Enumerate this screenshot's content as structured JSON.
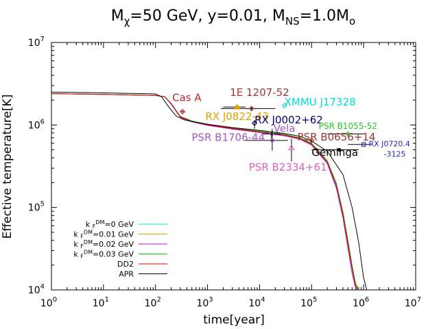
{
  "chart_data": {
    "type": "line",
    "title": "Mχ=50 GeV, y=0.01, MNS=1.0Mo",
    "title_parts": {
      "m1": "M",
      "sub1": "χ",
      "p1": "=50 GeV, y=0.01, M",
      "sub2": "NS",
      "p2": "=1.0M",
      "sub3": "o"
    },
    "xlabel": "time[year]",
    "ylabel": "Effective temperature[K]",
    "x_scale": "log",
    "y_scale": "log",
    "xlim": [
      1,
      10000000
    ],
    "ylim": [
      10000,
      10000000
    ],
    "x_ticks": [
      {
        "value": 1,
        "label_base": "10",
        "label_exp": "0"
      },
      {
        "value": 10,
        "label_base": "10",
        "label_exp": "1"
      },
      {
        "value": 100,
        "label_base": "10",
        "label_exp": "2"
      },
      {
        "value": 1000,
        "label_base": "10",
        "label_exp": "3"
      },
      {
        "value": 10000,
        "label_base": "10",
        "label_exp": "4"
      },
      {
        "value": 100000,
        "label_base": "10",
        "label_exp": "5"
      },
      {
        "value": 1000000,
        "label_base": "10",
        "label_exp": "6"
      },
      {
        "value": 10000000,
        "label_base": "10",
        "label_exp": "7"
      }
    ],
    "y_ticks": [
      {
        "value": 10000,
        "label_base": "10",
        "label_exp": "4"
      },
      {
        "value": 100000,
        "label_base": "10",
        "label_exp": "5"
      },
      {
        "value": 1000000,
        "label_base": "10",
        "label_exp": "6"
      },
      {
        "value": 10000000,
        "label_base": "10",
        "label_exp": "7"
      }
    ],
    "grid": false,
    "legend_position": "bottom-left",
    "series": [
      {
        "name": "k_F^DM=0 GeV",
        "label_parts": [
          "k",
          "F",
          "DM",
          "=0 GeV"
        ],
        "color": "#00e0e0",
        "x": [
          1,
          10,
          100,
          150,
          200,
          300,
          500,
          1000,
          3000,
          10000,
          30000,
          60000,
          100000,
          200000,
          300000,
          400000,
          500000,
          600000,
          700000,
          800000
        ],
        "y": [
          2400000,
          2350000,
          2280000,
          2200000,
          1800000,
          1250000,
          1100000,
          1000000,
          900000,
          820000,
          750000,
          680000,
          580000,
          350000,
          180000,
          80000,
          35000,
          18000,
          11000,
          10000
        ]
      },
      {
        "name": "k_F^DM=0.01 GeV",
        "label_parts": [
          "k",
          "F",
          "DM",
          "=0.01 GeV"
        ],
        "color": "#e0a000",
        "x": [
          1,
          10,
          100,
          150,
          200,
          300,
          500,
          1000,
          3000,
          10000,
          30000,
          60000,
          100000,
          200000,
          300000,
          400000,
          500000,
          600000,
          700000,
          820000
        ],
        "y": [
          2400000,
          2350000,
          2280000,
          2200000,
          1820000,
          1260000,
          1110000,
          1010000,
          910000,
          830000,
          760000,
          690000,
          590000,
          360000,
          190000,
          85000,
          38000,
          19000,
          11500,
          10000
        ]
      },
      {
        "name": "k_F^DM=0.02 GeV",
        "label_parts": [
          "k",
          "F",
          "DM",
          "=0.02 GeV"
        ],
        "color": "#e000e0",
        "x": [
          1,
          10,
          100,
          150,
          200,
          300,
          500,
          1000,
          3000,
          10000,
          30000,
          60000,
          100000,
          200000,
          300000,
          400000,
          500000,
          600000,
          700000,
          780000
        ],
        "y": [
          2400000,
          2350000,
          2280000,
          2200000,
          1790000,
          1240000,
          1090000,
          990000,
          890000,
          810000,
          740000,
          670000,
          570000,
          340000,
          170000,
          75000,
          32000,
          16000,
          10500,
          10000
        ]
      },
      {
        "name": "k_F^DM=0.03 GeV",
        "label_parts": [
          "k",
          "F",
          "DM",
          "=0.03 GeV"
        ],
        "color": "#00cc00",
        "x": [
          1,
          10,
          100,
          150,
          200,
          300,
          500,
          1000,
          3000,
          10000,
          30000,
          60000,
          100000,
          200000,
          300000,
          400000,
          500000,
          600000,
          700000,
          830000
        ],
        "y": [
          2400000,
          2350000,
          2280000,
          2200000,
          1830000,
          1270000,
          1120000,
          1020000,
          920000,
          840000,
          770000,
          700000,
          600000,
          370000,
          195000,
          88000,
          40000,
          20000,
          12000,
          10000
        ]
      },
      {
        "name": "DD2",
        "label_parts": [
          "DD2"
        ],
        "color": "#d00000",
        "x": [
          1,
          10,
          100,
          150,
          200,
          300,
          500,
          1000,
          3000,
          10000,
          30000,
          60000,
          100000,
          200000,
          300000,
          400000,
          500000,
          600000,
          700000,
          800000
        ],
        "y": [
          2400000,
          2350000,
          2280000,
          2200000,
          1810000,
          1255000,
          1105000,
          1005000,
          905000,
          825000,
          755000,
          685000,
          585000,
          355000,
          185000,
          82000,
          36000,
          18500,
          11200,
          10000
        ]
      },
      {
        "name": "APR",
        "label_parts": [
          "APR"
        ],
        "color": "#000000",
        "x": [
          1,
          10,
          100,
          130,
          180,
          250,
          350,
          500,
          1000,
          3000,
          10000,
          30000,
          60000,
          100000,
          200000,
          400000,
          600000,
          800000,
          1000000,
          1150000
        ],
        "y": [
          2500000,
          2450000,
          2380000,
          2200000,
          1650000,
          1280000,
          1160000,
          1100000,
          1020000,
          930000,
          860000,
          790000,
          730000,
          640000,
          480000,
          250000,
          100000,
          38000,
          14000,
          10000
        ]
      }
    ],
    "observations": [
      {
        "name": "Cas A",
        "color": "#cc2222",
        "marker": "diamond",
        "x": 330,
        "y": 1450000,
        "xerr": [
          310,
          350
        ],
        "yerr": null,
        "label_x": 400,
        "label_y": 1950000,
        "label_anchor": "middle"
      },
      {
        "name": "1E 1207-52",
        "color": "#aa3333",
        "marker": "diamond",
        "x": 7000,
        "y": 1580000,
        "xerr": [
          1800,
          20000
        ],
        "yerr": [
          1500000,
          1650000
        ],
        "label_x": 10000,
        "label_y": 2250000,
        "label_anchor": "middle"
      },
      {
        "name": "XMMU J17328",
        "color": "#00dddd",
        "marker": "diamond",
        "x": 30000,
        "y": 1720000,
        "xerr": null,
        "yerr": null,
        "label_x": 30000,
        "label_y": 1720000,
        "label_anchor": "start"
      },
      {
        "name": "RX J0822-43",
        "color": "#e8a000",
        "marker": "triangle",
        "x": 3700,
        "y": 1650000,
        "xerr": [
          2000,
          5400
        ],
        "yerr": null,
        "label_x": 3700,
        "label_y": 1150000,
        "label_anchor": "middle"
      },
      {
        "name": "RX J0002+62",
        "color": "#000080",
        "marker": "diamond",
        "x": 8000,
        "y": 1050000,
        "xerr": null,
        "yerr": [
          900000,
          1150000
        ],
        "label_x": 8000,
        "label_y": 1050000,
        "label_anchor": "start"
      },
      {
        "name": "PSR B1055-52",
        "color": "#22cc22",
        "marker": "diamond",
        "x": 500000,
        "y": 780000,
        "xerr": [
          200000,
          1000000
        ],
        "yerr": null,
        "label_x": 500000,
        "label_y": 900000,
        "label_anchor": "middle"
      },
      {
        "name": "Vela",
        "color": "#aa55cc",
        "marker": "diamond",
        "x": 17000,
        "y": 780000,
        "xerr": [
          11000,
          25000
        ],
        "yerr": [
          680000,
          850000
        ],
        "label_x": 30000,
        "label_y": 820000,
        "label_anchor": "middle"
      },
      {
        "name": "PSR B0656+14",
        "color": "#993333",
        "marker": "diamond",
        "x": 100000,
        "y": 650000,
        "xerr": null,
        "yerr": [
          600000,
          700000
        ],
        "label_x": 300000,
        "label_y": 650000,
        "label_anchor": "middle"
      },
      {
        "name": "PSR B1706-44",
        "color": "#aa55cc",
        "marker": "diamond",
        "x": 17500,
        "y": 650000,
        "xerr": [
          5000,
          35000
        ],
        "yerr": [
          490000,
          900000
        ],
        "label_x": 2500,
        "label_y": 640000,
        "label_anchor": "middle"
      },
      {
        "name": "RX J0720.4-3125",
        "color": "#2222cc",
        "marker": "square",
        "x": 1000000,
        "y": 580000,
        "xerr": [
          500000,
          1400000
        ],
        "yerr": null,
        "label_x": 1250000,
        "label_y": 550000,
        "label_anchor": "start",
        "label_lines": [
          "RX J0720.4",
          "-3125"
        ]
      },
      {
        "name": "Geminga",
        "color": "#000000",
        "marker": "circle",
        "x": 340000,
        "y": 500000,
        "xerr": [
          100000,
          800000
        ],
        "yerr": null,
        "label_x": 280000,
        "label_y": 420000,
        "label_anchor": "middle"
      },
      {
        "name": "PSR B2334+61",
        "color": "#e060c0",
        "marker": "triangle-open",
        "x": 41000,
        "y": 530000,
        "xerr": null,
        "yerr": [
          360000,
          680000
        ],
        "label_x": 35000,
        "label_y": 280000,
        "label_anchor": "middle"
      }
    ]
  }
}
